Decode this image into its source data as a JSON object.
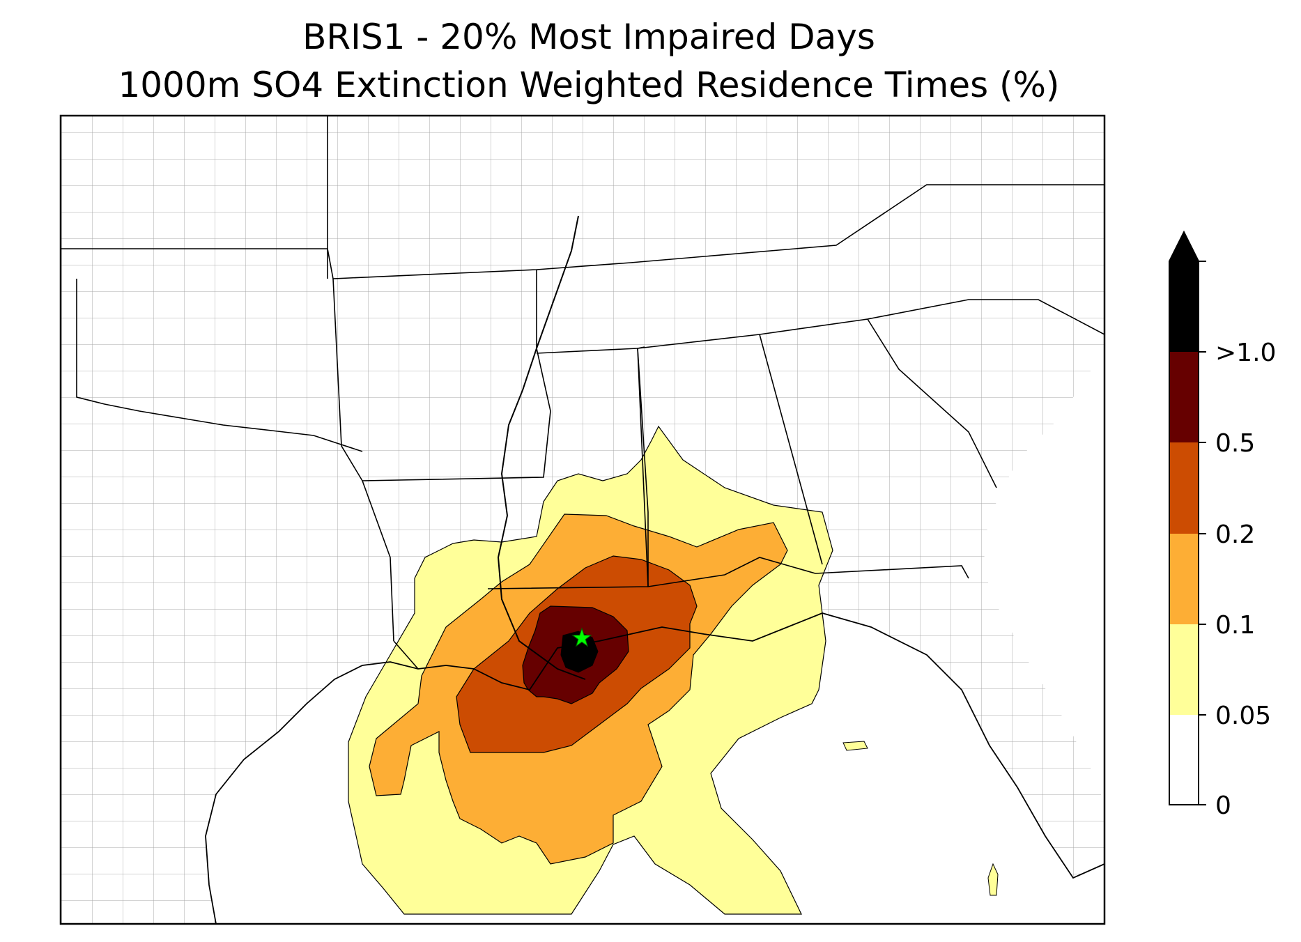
{
  "title": {
    "line1": "BRIS1 - 20% Most Impaired Days",
    "line2": "1000m SO4 Extinction Weighted Residence Times (%)"
  },
  "colorbar": {
    "ticks": [
      "0",
      "0.05",
      "0.1",
      "0.2",
      "0.5",
      ">1.0"
    ],
    "bins": [
      {
        "range": "0-0.05",
        "color": "#ffffff"
      },
      {
        "range": "0.05-0.1",
        "color": "#ffff99"
      },
      {
        "range": "0.1-0.2",
        "color": "#fdae35"
      },
      {
        "range": "0.2-0.5",
        "color": "#cc4c02"
      },
      {
        "range": "0.5-1.0",
        "color": "#660000"
      },
      {
        "range": ">1.0",
        "color": "#000000"
      }
    ]
  },
  "map": {
    "receptor_marker": "green-star",
    "receptor_color": "#00ff00",
    "state_line_color": "#000000",
    "county_line_color": "#999999"
  }
}
